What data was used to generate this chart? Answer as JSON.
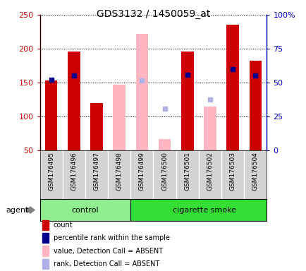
{
  "title": "GDS3132 / 1450059_at",
  "samples": [
    "GSM176495",
    "GSM176496",
    "GSM176497",
    "GSM176498",
    "GSM176499",
    "GSM176500",
    "GSM176501",
    "GSM176502",
    "GSM176503",
    "GSM176504"
  ],
  "groups": [
    "control",
    "control",
    "control",
    "control",
    "cigarette smoke",
    "cigarette smoke",
    "cigarette smoke",
    "cigarette smoke",
    "cigarette smoke",
    "cigarette smoke"
  ],
  "count_values": [
    153,
    196,
    120,
    null,
    null,
    null,
    196,
    null,
    236,
    182
  ],
  "rank_values": [
    154,
    161,
    null,
    null,
    null,
    null,
    162,
    null,
    170,
    161
  ],
  "absent_value_values": [
    null,
    null,
    null,
    147,
    222,
    67,
    null,
    115,
    null,
    null
  ],
  "absent_rank_values": [
    null,
    null,
    null,
    null,
    153,
    112,
    null,
    125,
    null,
    null
  ],
  "ylim_left": [
    50,
    250
  ],
  "ylim_right": [
    0,
    100
  ],
  "yticks_left": [
    50,
    100,
    150,
    200,
    250
  ],
  "yticks_right": [
    0,
    25,
    50,
    75,
    100
  ],
  "ytick_labels_left": [
    "50",
    "100",
    "150",
    "200",
    "250"
  ],
  "ytick_labels_right": [
    "0",
    "25",
    "50",
    "75",
    "100%"
  ],
  "count_color": "#cc0000",
  "rank_color": "#00008b",
  "absent_value_color": "#ffb6c1",
  "absent_rank_color": "#b0b0e8",
  "ctrl_color": "#90ee90",
  "smoke_color": "#33dd33",
  "legend_items": [
    {
      "color": "#cc0000",
      "label": "count"
    },
    {
      "color": "#00008b",
      "label": "percentile rank within the sample"
    },
    {
      "color": "#ffb6c1",
      "label": "value, Detection Call = ABSENT"
    },
    {
      "color": "#b0b0e8",
      "label": "rank, Detection Call = ABSENT"
    }
  ],
  "axis_color_left": "#cc0000",
  "axis_color_right": "#0000cc",
  "label_bg": "#d3d3d3",
  "bar_width": 0.55
}
